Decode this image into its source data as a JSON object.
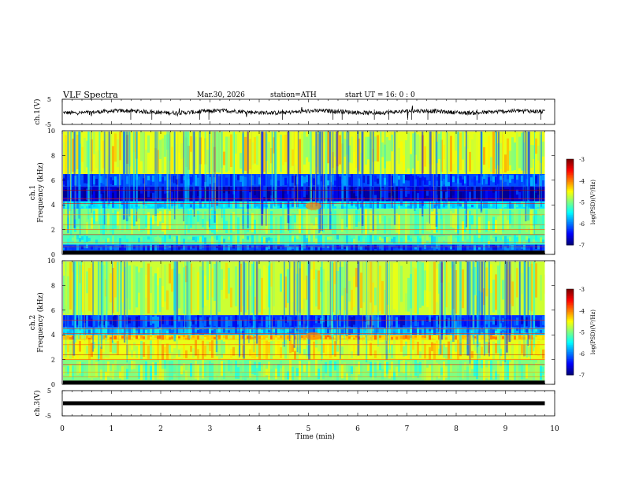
{
  "header": {
    "title": "VLF  Spectra",
    "date": "Mar.30, 2026",
    "station": "station=ATH",
    "start_ut": "start  UT  =    16: 0   : 0"
  },
  "chart_data": [
    {
      "id": "ch1-waveform",
      "type": "line",
      "ylabel": "ch.1(V)",
      "ylim": [
        -5,
        5
      ],
      "yticks": [
        "5",
        "-5"
      ],
      "xlim": [
        0,
        10
      ],
      "trace_extent_min": 9.8
    },
    {
      "id": "ch1-spectrogram",
      "type": "heatmap",
      "ylabel": "ch.1\nFrequency (kHz)",
      "ylabel_lines": [
        "ch.1",
        "Frequency (kHz)"
      ],
      "ylim": [
        0,
        10
      ],
      "yticks": [
        "0",
        "2",
        "4",
        "6",
        "8",
        "10"
      ],
      "xlim": [
        0,
        10
      ],
      "colorbar": {
        "label": "log(PSD)(V²/Hz)",
        "ticks": [
          "-3",
          "-4",
          "-5",
          "-6",
          "-7"
        ],
        "range": [
          -7,
          -3
        ]
      },
      "bands": [
        {
          "f": [
            0,
            0.3
          ],
          "level": -7
        },
        {
          "f": [
            0.3,
            0.8
          ],
          "level": -6.2
        },
        {
          "f": [
            0.8,
            1.6
          ],
          "level": -5.2
        },
        {
          "f": [
            1.6,
            3.7
          ],
          "level": -5.0
        },
        {
          "f": [
            3.7,
            4.3
          ],
          "level": -5.6
        },
        {
          "f": [
            4.3,
            5.5
          ],
          "level": -6.7
        },
        {
          "f": [
            5.5,
            6.5
          ],
          "level": -6.2
        },
        {
          "f": [
            6.5,
            10
          ],
          "level": -4.6
        }
      ],
      "trace_extent_min": 9.8
    },
    {
      "id": "ch2-spectrogram",
      "type": "heatmap",
      "ylabel": "ch.2\nFrequency (kHz)",
      "ylabel_lines": [
        "ch.2",
        "Frequency (kHz)"
      ],
      "ylim": [
        0,
        10
      ],
      "yticks": [
        "0",
        "2",
        "4",
        "6",
        "8",
        "10"
      ],
      "xlim": [
        0,
        10
      ],
      "colorbar": {
        "label": "log(PSD)(V²/Hz)",
        "ticks": [
          "-3",
          "-4",
          "-5",
          "-6",
          "-7"
        ],
        "range": [
          -7,
          -3
        ]
      },
      "bands": [
        {
          "f": [
            0,
            0.3
          ],
          "level": -7
        },
        {
          "f": [
            0.3,
            2.0
          ],
          "level": -5.0
        },
        {
          "f": [
            2.0,
            3.6
          ],
          "level": -4.6
        },
        {
          "f": [
            3.6,
            4.0
          ],
          "level": -4.3
        },
        {
          "f": [
            4.0,
            4.6
          ],
          "level": -5.8
        },
        {
          "f": [
            4.6,
            5.6
          ],
          "level": -6.3
        },
        {
          "f": [
            5.6,
            10
          ],
          "level": -4.7
        }
      ],
      "trace_extent_min": 9.8
    },
    {
      "id": "ch3-waveform",
      "type": "line",
      "ylabel": "ch.3(V)",
      "ylim": [
        -5,
        5
      ],
      "yticks": [
        "5",
        "-5"
      ],
      "xlim": [
        0,
        10
      ],
      "trace_extent_min": 9.8
    }
  ],
  "x_axis": {
    "label": "Time  (min)",
    "ticks": [
      "0",
      "1",
      "2",
      "3",
      "4",
      "5",
      "6",
      "7",
      "8",
      "9",
      "10"
    ]
  },
  "colors": {
    "background": "#ffffff",
    "axis": "#000000",
    "trace": "#000000"
  }
}
